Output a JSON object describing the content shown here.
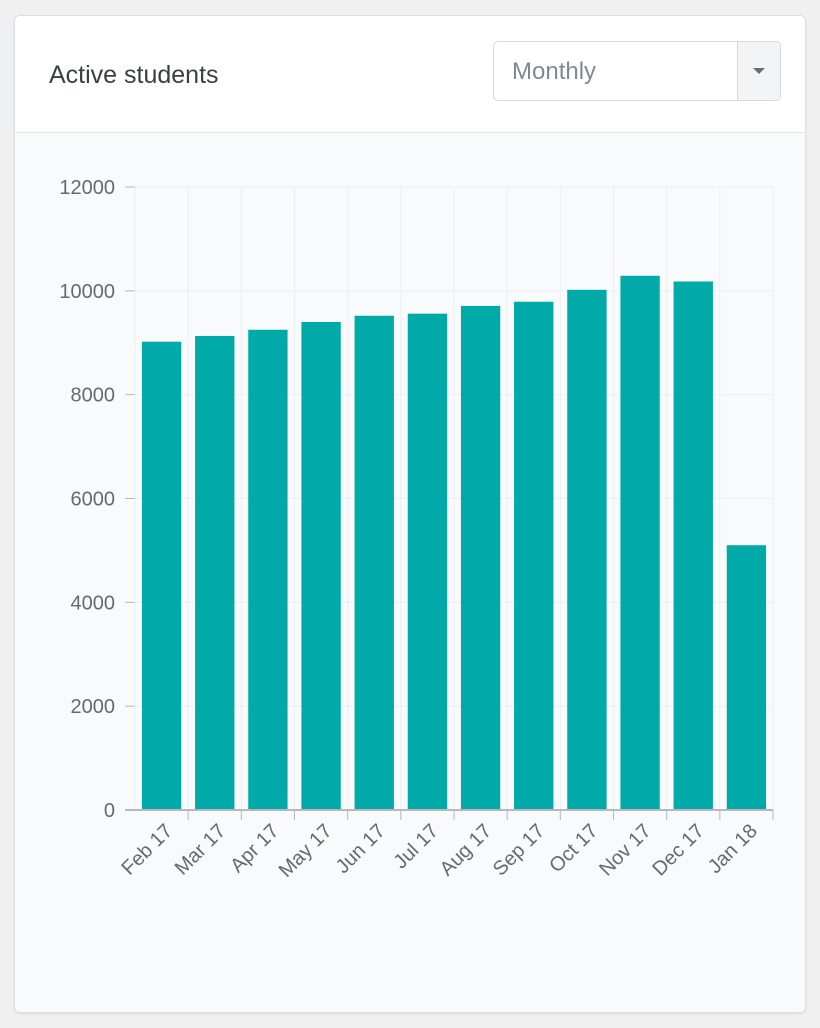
{
  "header": {
    "title": "Active students",
    "period_select": {
      "value": "Monthly"
    }
  },
  "colors": {
    "bar": "#00aaa8",
    "grid": "#eceef1",
    "axis": "#b5b8bc"
  },
  "chart_data": {
    "type": "bar",
    "title": "",
    "xlabel": "",
    "ylabel": "",
    "categories": [
      "Feb 17",
      "Mar 17",
      "Apr 17",
      "May 17",
      "Jun 17",
      "Jul 17",
      "Aug 17",
      "Sep 17",
      "Oct 17",
      "Nov 17",
      "Dec 17",
      "Jan 18"
    ],
    "values": [
      9020,
      9130,
      9250,
      9400,
      9520,
      9560,
      9710,
      9790,
      10020,
      10290,
      10180,
      5100
    ],
    "ylim": [
      0,
      12000
    ],
    "yticks": [
      "0",
      "2000",
      "4000",
      "6000",
      "8000",
      "10000",
      "12000"
    ],
    "grid": true,
    "legend": "none"
  }
}
